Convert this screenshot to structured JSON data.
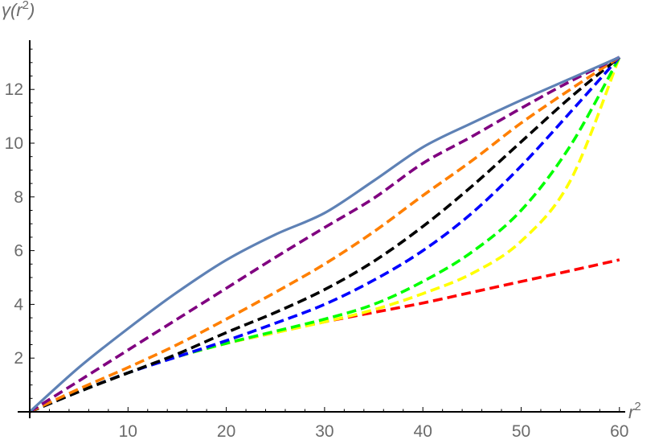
{
  "chart_data": {
    "type": "line",
    "title": "",
    "xlabel": "r^2",
    "ylabel": "γ(r^2)",
    "xlabel_parts": {
      "base": "r",
      "sup": "2"
    },
    "ylabel_parts": {
      "pre": "γ(",
      "base": "r",
      "sup": "2",
      "post": ")"
    },
    "xlim": [
      0,
      60
    ],
    "ylim": [
      0,
      13.5
    ],
    "x_ticks": [
      10,
      20,
      30,
      40,
      50,
      60
    ],
    "y_ticks": [
      2,
      4,
      6,
      8,
      10,
      12
    ],
    "x_minor_step": 2,
    "y_minor_step": 0.5,
    "grid": false,
    "legend": null,
    "x": [
      0,
      5,
      10,
      15,
      20,
      25,
      30,
      35,
      40,
      45,
      50,
      55,
      60
    ],
    "series": [
      {
        "name": "solid",
        "color": "#5e81b5",
        "dash": "solid",
        "values": [
          0,
          1.65,
          3.1,
          4.45,
          5.65,
          6.6,
          7.4,
          8.6,
          9.85,
          10.75,
          11.6,
          12.4,
          13.2
        ]
      },
      {
        "name": "purple",
        "color": "#800080",
        "dash": "dashed",
        "values": [
          0,
          1.15,
          2.3,
          3.45,
          4.6,
          5.75,
          6.86,
          7.95,
          9.25,
          10.25,
          11.3,
          12.3,
          13.2
        ]
      },
      {
        "name": "orange",
        "color": "#ff7f00",
        "dash": "dashed",
        "values": [
          0,
          0.85,
          1.65,
          2.5,
          3.45,
          4.45,
          5.5,
          6.7,
          8.05,
          9.35,
          10.75,
          12.0,
          13.2
        ]
      },
      {
        "name": "black",
        "color": "#000000",
        "dash": "dashed",
        "values": [
          0,
          0.75,
          1.45,
          2.15,
          2.95,
          3.7,
          4.55,
          5.6,
          6.9,
          8.4,
          10.05,
          11.7,
          13.2
        ]
      },
      {
        "name": "blue",
        "color": "#0000ff",
        "dash": "dashed",
        "values": [
          0,
          0.75,
          1.45,
          2.05,
          2.65,
          3.3,
          4.0,
          4.9,
          6.0,
          7.4,
          9.15,
          11.15,
          13.2
        ]
      },
      {
        "name": "green",
        "color": "#00ff00",
        "dash": "dashed",
        "values": [
          0,
          0.75,
          1.45,
          2.05,
          2.55,
          3.0,
          3.45,
          4.0,
          4.85,
          5.95,
          7.5,
          9.9,
          13.2
        ]
      },
      {
        "name": "yellow",
        "color": "#ffff00",
        "dash": "dashed",
        "values": [
          0,
          0.75,
          1.45,
          2.05,
          2.55,
          2.95,
          3.35,
          3.8,
          4.4,
          5.15,
          6.35,
          8.6,
          13.2
        ]
      },
      {
        "name": "red",
        "color": "#ff0000",
        "dash": "dashed",
        "values": [
          0,
          0.75,
          1.45,
          2.05,
          2.55,
          2.95,
          3.35,
          3.7,
          4.05,
          4.45,
          4.85,
          5.25,
          5.66
        ]
      }
    ]
  }
}
